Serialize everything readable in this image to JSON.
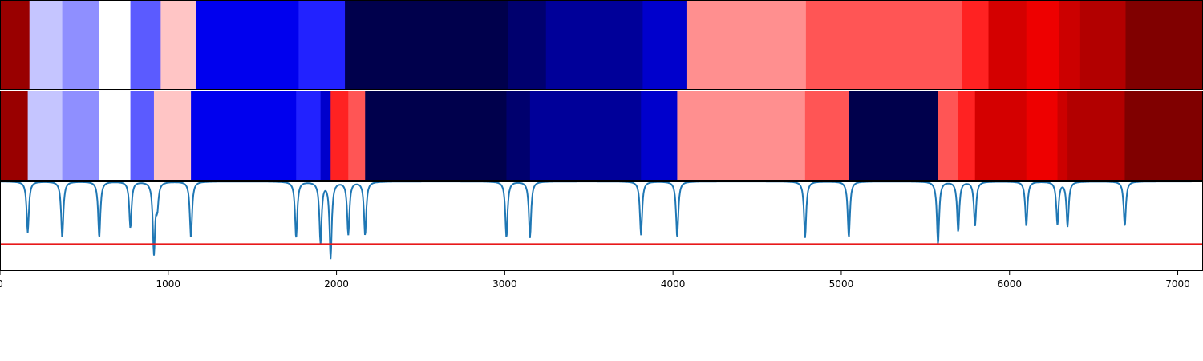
{
  "chart_data": {
    "type": "heatmap",
    "xlim": [
      0,
      7150
    ],
    "x_ticks": [
      "0",
      "1000",
      "2000",
      "3000",
      "4000",
      "5000",
      "6000",
      "7000"
    ],
    "x_tick_values": [
      0,
      1000,
      2000,
      3000,
      4000,
      5000,
      6000,
      7000
    ],
    "colormap": "seismic",
    "rows": [
      {
        "segments": [
          {
            "start": 0,
            "end": 175,
            "color": "#990000"
          },
          {
            "start": 175,
            "end": 370,
            "color": "#c5c5ff"
          },
          {
            "start": 370,
            "end": 590,
            "color": "#8f8fff"
          },
          {
            "start": 590,
            "end": 775,
            "color": "#ffffff"
          },
          {
            "start": 775,
            "end": 955,
            "color": "#5b5bff"
          },
          {
            "start": 955,
            "end": 1165,
            "color": "#ffc5c5"
          },
          {
            "start": 1165,
            "end": 1775,
            "color": "#0000ee"
          },
          {
            "start": 1775,
            "end": 2050,
            "color": "#2222ff"
          },
          {
            "start": 2050,
            "end": 3020,
            "color": "#00004c"
          },
          {
            "start": 3020,
            "end": 3245,
            "color": "#00006e"
          },
          {
            "start": 3245,
            "end": 3820,
            "color": "#000099"
          },
          {
            "start": 3820,
            "end": 4080,
            "color": "#0000cc"
          },
          {
            "start": 4080,
            "end": 4790,
            "color": "#ff8f8f"
          },
          {
            "start": 4790,
            "end": 5720,
            "color": "#ff5555"
          },
          {
            "start": 5720,
            "end": 5875,
            "color": "#ff2222"
          },
          {
            "start": 5875,
            "end": 6100,
            "color": "#d40000"
          },
          {
            "start": 6100,
            "end": 6295,
            "color": "#ee0000"
          },
          {
            "start": 6295,
            "end": 6420,
            "color": "#cc0000"
          },
          {
            "start": 6420,
            "end": 6690,
            "color": "#b20000"
          },
          {
            "start": 6690,
            "end": 7150,
            "color": "#800000"
          }
        ]
      },
      {
        "segments": [
          {
            "start": 0,
            "end": 165,
            "color": "#990000"
          },
          {
            "start": 165,
            "end": 370,
            "color": "#c5c5ff"
          },
          {
            "start": 370,
            "end": 590,
            "color": "#8f8fff"
          },
          {
            "start": 590,
            "end": 775,
            "color": "#ffffff"
          },
          {
            "start": 775,
            "end": 915,
            "color": "#5b5bff"
          },
          {
            "start": 915,
            "end": 1135,
            "color": "#ffc5c5"
          },
          {
            "start": 1135,
            "end": 1760,
            "color": "#0000ee"
          },
          {
            "start": 1760,
            "end": 1905,
            "color": "#2222ff"
          },
          {
            "start": 1905,
            "end": 1965,
            "color": "#0000cc"
          },
          {
            "start": 1965,
            "end": 2070,
            "color": "#ff2222"
          },
          {
            "start": 2070,
            "end": 2170,
            "color": "#ff5555"
          },
          {
            "start": 2170,
            "end": 3010,
            "color": "#00004c"
          },
          {
            "start": 3010,
            "end": 3150,
            "color": "#00006e"
          },
          {
            "start": 3150,
            "end": 3810,
            "color": "#000099"
          },
          {
            "start": 3810,
            "end": 4025,
            "color": "#0000cc"
          },
          {
            "start": 4025,
            "end": 4785,
            "color": "#ff8f8f"
          },
          {
            "start": 4785,
            "end": 5045,
            "color": "#ff5555"
          },
          {
            "start": 5045,
            "end": 5575,
            "color": "#00004c"
          },
          {
            "start": 5575,
            "end": 5695,
            "color": "#ff5555"
          },
          {
            "start": 5695,
            "end": 5795,
            "color": "#ff2222"
          },
          {
            "start": 5795,
            "end": 6100,
            "color": "#d40000"
          },
          {
            "start": 6100,
            "end": 6285,
            "color": "#ee0000"
          },
          {
            "start": 6285,
            "end": 6345,
            "color": "#cc0000"
          },
          {
            "start": 6345,
            "end": 6685,
            "color": "#b20000"
          },
          {
            "start": 6685,
            "end": 7150,
            "color": "#800000"
          }
        ]
      }
    ],
    "line_panel": {
      "ylim": [
        0,
        1
      ],
      "baseline": 1.0,
      "threshold": 0.3,
      "line_color": "#1f77b4",
      "threshold_color": "#e8191a",
      "dips": [
        {
          "x": 165,
          "depth": 0.57
        },
        {
          "x": 370,
          "depth": 0.63
        },
        {
          "x": 590,
          "depth": 0.63
        },
        {
          "x": 775,
          "depth": 0.52
        },
        {
          "x": 915,
          "depth": 0.79
        },
        {
          "x": 935,
          "depth": 0.25
        },
        {
          "x": 1135,
          "depth": 0.63
        },
        {
          "x": 1760,
          "depth": 0.63
        },
        {
          "x": 1905,
          "depth": 0.68
        },
        {
          "x": 1965,
          "depth": 0.85
        },
        {
          "x": 2070,
          "depth": 0.59
        },
        {
          "x": 2170,
          "depth": 0.6
        },
        {
          "x": 3010,
          "depth": 0.63
        },
        {
          "x": 3150,
          "depth": 0.63
        },
        {
          "x": 3810,
          "depth": 0.6
        },
        {
          "x": 4025,
          "depth": 0.63
        },
        {
          "x": 4785,
          "depth": 0.63
        },
        {
          "x": 5045,
          "depth": 0.63
        },
        {
          "x": 5575,
          "depth": 0.7
        },
        {
          "x": 5695,
          "depth": 0.56
        },
        {
          "x": 5795,
          "depth": 0.5
        },
        {
          "x": 6100,
          "depth": 0.5
        },
        {
          "x": 6285,
          "depth": 0.48
        },
        {
          "x": 6345,
          "depth": 0.5
        },
        {
          "x": 6685,
          "depth": 0.5
        }
      ]
    }
  }
}
